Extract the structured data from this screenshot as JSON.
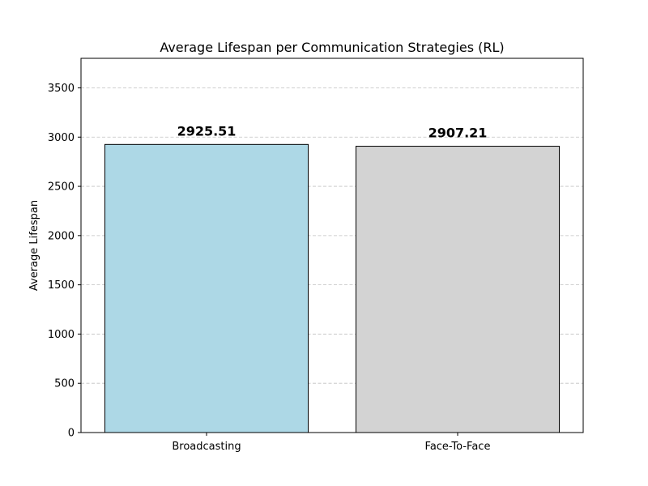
{
  "chart_data": {
    "type": "bar",
    "title": "Average Lifespan per Communication Strategies (RL)",
    "xlabel": "",
    "ylabel": "Average Lifespan",
    "categories": [
      "Broadcasting",
      "Face-To-Face"
    ],
    "values": [
      2925.51,
      2907.21
    ],
    "value_labels": [
      "2925.51",
      "2907.21"
    ],
    "colors": [
      "#add8e6",
      "#d3d3d3"
    ],
    "ylim": [
      0,
      3800
    ],
    "yticks": [
      0,
      500,
      1000,
      1500,
      2000,
      2500,
      3000,
      3500
    ],
    "grid": "y-dashed",
    "legend": "none"
  }
}
